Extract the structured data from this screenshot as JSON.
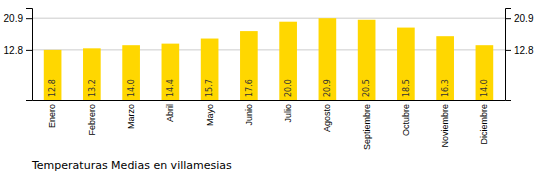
{
  "chart_data": {
    "type": "bar",
    "title": "Temperaturas Medias en villamesias",
    "categories": [
      "Enero",
      "Febrero",
      "Marzo",
      "Abril",
      "Mayo",
      "Junio",
      "Julio",
      "Agosto",
      "Septiembre",
      "Octubre",
      "Noviembre",
      "Diciembre"
    ],
    "values": [
      12.8,
      13.2,
      14.0,
      14.4,
      15.7,
      17.6,
      20.0,
      20.9,
      20.5,
      18.5,
      16.3,
      14.0
    ],
    "value_labels": [
      "12.8",
      "13.2",
      "14.0",
      "14.4",
      "15.7",
      "17.6",
      "20.0",
      "20.9",
      "20.5",
      "18.5",
      "16.3",
      "14.0"
    ],
    "color": "#FFD700",
    "ylim": [
      0,
      23.5
    ],
    "yticks": [
      12.8,
      20.9
    ],
    "y2lim": [
      0,
      23.5
    ],
    "y2ticks": [
      12.8,
      20.9
    ],
    "grid": true,
    "data_labels": true
  }
}
